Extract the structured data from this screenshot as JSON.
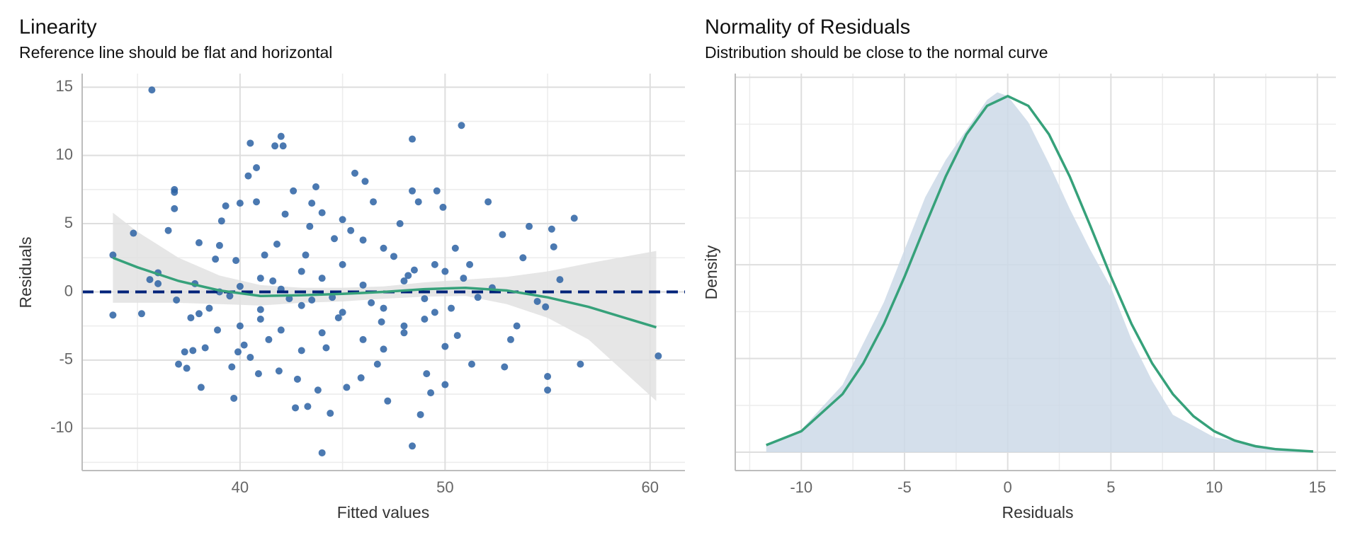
{
  "chart_data": [
    {
      "type": "scatter",
      "title": "Linearity",
      "subtitle": "Reference line should be flat and horizontal",
      "x_label": "Fitted values",
      "y_label": "Residuals",
      "x": [
        35.7,
        33.8,
        33.8,
        34.8,
        35.2,
        35.6,
        36.0,
        36.0,
        36.5,
        36.8,
        36.8,
        36.8,
        36.9,
        37.0,
        37.3,
        37.4,
        37.6,
        37.7,
        37.8,
        38.0,
        38.1,
        38.3,
        38.5,
        38.8,
        38.9,
        39.0,
        39.1,
        39.3,
        39.5,
        39.6,
        39.7,
        39.8,
        39.9,
        40.0,
        40.2,
        40.4,
        40.5,
        40.5,
        40.8,
        40.8,
        40.9,
        41.0,
        41.2,
        41.4,
        41.6,
        41.7,
        41.8,
        41.9,
        42.0,
        42.1,
        42.2,
        42.4,
        42.6,
        42.7,
        42.8,
        43.0,
        43.2,
        43.3,
        43.4,
        43.5,
        43.7,
        43.8,
        44.0,
        44.0,
        44.2,
        44.4,
        44.6,
        44.8,
        45.0,
        45.2,
        45.4,
        45.6,
        45.9,
        46.1,
        46.4,
        46.5,
        46.7,
        46.9,
        47.2,
        47.5,
        47.8,
        48.0,
        48.2,
        48.4,
        48.4,
        48.4,
        48.7,
        48.8,
        49.1,
        49.3,
        49.5,
        49.6,
        49.9,
        50.0,
        50.3,
        50.6,
        50.8,
        50.9,
        51.2,
        51.3,
        51.6,
        52.1,
        52.3,
        52.8,
        52.9,
        53.2,
        53.5,
        53.8,
        54.1,
        54.5,
        54.9,
        55.0,
        55.0,
        55.2,
        55.3,
        55.6,
        56.3,
        56.6,
        60.4,
        42,
        43,
        44,
        45,
        46,
        47,
        48,
        49,
        50,
        41,
        40,
        39,
        38,
        44,
        45,
        46,
        47,
        48,
        49,
        50,
        43,
        42,
        41,
        40,
        46,
        47,
        44.5,
        43.5,
        48.5,
        49.5,
        50.5
      ],
      "y": [
        14.8,
        2.7,
        -1.7,
        4.3,
        -1.6,
        0.9,
        1.4,
        0.6,
        4.5,
        7.5,
        7.3,
        6.1,
        -0.6,
        -5.3,
        -4.4,
        -5.6,
        -1.9,
        -4.3,
        0.6,
        3.6,
        -7.0,
        -4.1,
        -1.2,
        2.4,
        -2.8,
        3.4,
        5.2,
        6.3,
        -0.3,
        -5.5,
        -7.8,
        2.3,
        -4.4,
        6.5,
        -3.9,
        8.5,
        10.9,
        -4.8,
        9.1,
        6.6,
        -6.0,
        -1.3,
        2.7,
        -3.5,
        0.8,
        10.7,
        3.5,
        -5.8,
        11.4,
        10.7,
        5.7,
        -0.5,
        7.4,
        -8.5,
        -6.4,
        -4.3,
        2.7,
        -8.4,
        4.8,
        6.5,
        7.7,
        -7.2,
        -11.8,
        5.8,
        -4.1,
        -8.9,
        3.9,
        -1.9,
        5.3,
        -7.0,
        4.5,
        8.7,
        -6.3,
        8.1,
        -0.8,
        6.6,
        -5.3,
        -2.2,
        -8.0,
        2.6,
        5.0,
        -2.5,
        1.2,
        7.4,
        11.2,
        -11.3,
        6.6,
        -9.0,
        -6.0,
        -7.4,
        2.0,
        7.4,
        6.2,
        -6.8,
        -1.2,
        -3.2,
        12.2,
        1.0,
        2.0,
        -5.3,
        -0.4,
        6.6,
        0.3,
        4.2,
        -5.5,
        -3.5,
        -2.5,
        2.5,
        4.8,
        -0.7,
        -1.1,
        -6.2,
        -7.2,
        4.6,
        3.3,
        0.9,
        5.4,
        -5.3,
        -4.7,
        0.2,
        -1,
        1,
        -1.5,
        0.5,
        -1.2,
        0.8,
        -2,
        1.5,
        -2,
        -2.5,
        0,
        -1.6,
        -3,
        2,
        -3.5,
        3.2,
        -3,
        -0.5,
        -4,
        1.5,
        -2.8,
        1,
        0.4,
        3.8,
        -4.2,
        -0.4,
        -0.6,
        1.6,
        -1.5,
        3.2
      ],
      "color": "#2b62a3",
      "xlim": [
        32.3,
        61.7
      ],
      "xticks": [
        40,
        50,
        60
      ],
      "ylim": [
        -13.1,
        16.0
      ],
      "yticks": [
        -10,
        -5,
        0,
        5,
        10,
        15
      ],
      "grid": true,
      "reference_line": {
        "value": 0,
        "color": "#00237a"
      },
      "smooth": {
        "x": [
          33.8,
          35,
          37,
          39,
          41,
          43,
          45,
          47,
          49,
          51,
          53,
          55,
          57,
          60.3
        ],
        "values": [
          2.5,
          1.8,
          0.8,
          0.1,
          -0.3,
          -0.25,
          -0.15,
          0,
          0.2,
          0.3,
          0.1,
          -0.4,
          -1.1,
          -2.6
        ],
        "lower": [
          -0.8,
          -0.8,
          -0.8,
          -0.9,
          -1.0,
          -0.8,
          -0.7,
          -0.5,
          -0.35,
          -0.3,
          -0.9,
          -1.9,
          -3.5,
          -8.0
        ],
        "upper": [
          5.8,
          4.4,
          2.5,
          1.2,
          0.5,
          0.3,
          0.3,
          0.4,
          0.7,
          0.9,
          1.1,
          1.5,
          2.1,
          3.0
        ],
        "color": "#36a17a",
        "band_color": "#e2e2e2"
      }
    },
    {
      "type": "density",
      "title": "Normality of Residuals",
      "subtitle": "Distribution should be close to the normal curve",
      "x_label": "Residuals",
      "y_label": "Density",
      "xlim": [
        -13.2,
        15.9
      ],
      "xticks": [
        -10,
        -5,
        0,
        5,
        10,
        15
      ],
      "ylim": [
        -0.0049,
        0.101
      ],
      "yticks": [
        0,
        0.025,
        0.05,
        0.075,
        0.1
      ],
      "grid": true,
      "density": {
        "x": [
          -11.7,
          -10,
          -8,
          -6,
          -4,
          -3,
          -2,
          -1,
          -0.5,
          0,
          1,
          2,
          3,
          4,
          5,
          6,
          7,
          8,
          10,
          11,
          12,
          13,
          14.8
        ],
        "values": [
          0.002,
          0.006,
          0.018,
          0.04,
          0.068,
          0.078,
          0.086,
          0.094,
          0.096,
          0.095,
          0.088,
          0.077,
          0.065,
          0.054,
          0.044,
          0.03,
          0.019,
          0.01,
          0.004,
          0.003,
          0.002,
          0.001,
          0.0002
        ],
        "color": "#cdd9e7"
      },
      "normal": {
        "x": [
          -11.7,
          -10,
          -8,
          -7,
          -6,
          -5,
          -4,
          -3,
          -2,
          -1,
          0,
          1,
          2,
          3,
          4,
          5,
          6,
          7,
          8,
          9,
          10,
          11,
          12,
          13,
          14.8
        ],
        "values": [
          0.0019,
          0.0056,
          0.0155,
          0.0237,
          0.0342,
          0.0468,
          0.0604,
          0.0736,
          0.0848,
          0.0924,
          0.095,
          0.0924,
          0.0848,
          0.0736,
          0.0604,
          0.0468,
          0.0342,
          0.0237,
          0.0155,
          0.0096,
          0.0056,
          0.0031,
          0.0016,
          0.0008,
          0.0002
        ],
        "color": "#36a17a"
      }
    }
  ]
}
